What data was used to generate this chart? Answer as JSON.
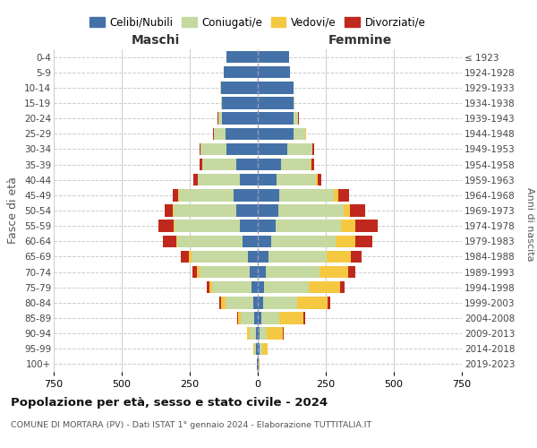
{
  "age_groups": [
    "0-4",
    "5-9",
    "10-14",
    "15-19",
    "20-24",
    "25-29",
    "30-34",
    "35-39",
    "40-44",
    "45-49",
    "50-54",
    "55-59",
    "60-64",
    "65-69",
    "70-74",
    "75-79",
    "80-84",
    "85-89",
    "90-94",
    "95-99",
    "100+"
  ],
  "birth_years": [
    "2019-2023",
    "2014-2018",
    "2009-2013",
    "2004-2008",
    "1999-2003",
    "1994-1998",
    "1989-1993",
    "1984-1988",
    "1979-1983",
    "1974-1978",
    "1969-1973",
    "1964-1968",
    "1959-1963",
    "1954-1958",
    "1949-1953",
    "1944-1948",
    "1939-1943",
    "1934-1938",
    "1929-1933",
    "1924-1928",
    "≤ 1923"
  ],
  "maschi": {
    "celibe": [
      115,
      125,
      135,
      130,
      130,
      120,
      115,
      80,
      65,
      90,
      80,
      65,
      55,
      35,
      28,
      22,
      18,
      12,
      8,
      5,
      2
    ],
    "coniugato": [
      0,
      0,
      2,
      5,
      15,
      40,
      95,
      125,
      155,
      200,
      230,
      240,
      240,
      210,
      185,
      145,
      100,
      50,
      20,
      8,
      1
    ],
    "vedovo": [
      0,
      0,
      0,
      0,
      0,
      0,
      0,
      0,
      1,
      2,
      3,
      5,
      5,
      8,
      10,
      12,
      18,
      12,
      10,
      5,
      0
    ],
    "divorziato": [
      0,
      0,
      0,
      0,
      2,
      3,
      5,
      8,
      15,
      22,
      30,
      55,
      50,
      30,
      18,
      10,
      5,
      2,
      2,
      0,
      0
    ]
  },
  "femmine": {
    "nubile": [
      115,
      120,
      130,
      130,
      130,
      130,
      110,
      85,
      70,
      80,
      75,
      65,
      50,
      38,
      28,
      22,
      20,
      14,
      8,
      5,
      2
    ],
    "coniugata": [
      0,
      0,
      2,
      5,
      18,
      45,
      90,
      110,
      145,
      200,
      240,
      240,
      235,
      215,
      200,
      165,
      125,
      65,
      25,
      10,
      1
    ],
    "vedova": [
      0,
      0,
      0,
      0,
      0,
      1,
      2,
      3,
      5,
      15,
      25,
      55,
      75,
      90,
      105,
      115,
      110,
      90,
      60,
      20,
      2
    ],
    "divorziata": [
      0,
      0,
      0,
      0,
      2,
      3,
      5,
      8,
      15,
      40,
      55,
      80,
      60,
      40,
      25,
      18,
      10,
      5,
      2,
      0,
      0
    ]
  },
  "colors": {
    "celibe": "#4472a8",
    "coniugato": "#c5d9a0",
    "vedovo": "#f5c842",
    "divorziato": "#c0281e"
  },
  "legend_labels": [
    "Celibi/Nubili",
    "Coniugati/e",
    "Vedovi/e",
    "Divorziati/e"
  ],
  "title": "Popolazione per età, sesso e stato civile - 2024",
  "subtitle": "COMUNE DI MORTARA (PV) - Dati ISTAT 1° gennaio 2024 - Elaborazione TUTTITALIA.IT",
  "xlabel_left": "Maschi",
  "xlabel_right": "Femmine",
  "ylabel": "Fasce di età",
  "ylabel_right": "Anni di nascita",
  "xlim": 750,
  "background_color": "#ffffff",
  "grid_color": "#cccccc"
}
